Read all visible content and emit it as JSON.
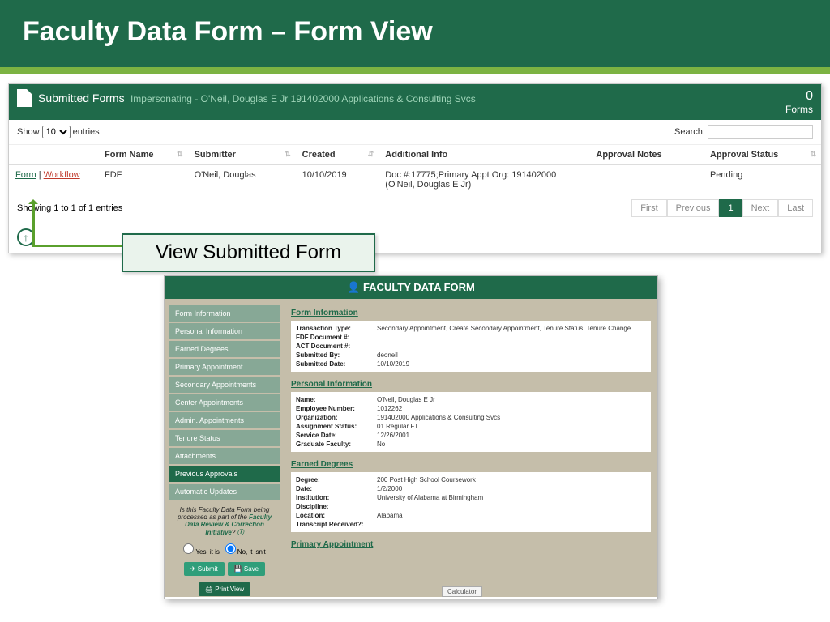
{
  "banner": {
    "title": "Faculty Data Form – Form View"
  },
  "panel1": {
    "title": "Submitted Forms",
    "impersonating": "Impersonating - O'Neil, Douglas E Jr 191402000 Applications & Consulting Svcs",
    "count": "0",
    "count_label": "Forms",
    "show_label_pre": "Show",
    "show_value": "10",
    "show_label_post": "entries",
    "search_label": "Search:",
    "columns": [
      "",
      "Form Name",
      "Submitter",
      "Created",
      "Additional Info",
      "Approval Notes",
      "Approval Status"
    ],
    "row": {
      "form_link": "Form",
      "workflow_link": "Workflow",
      "form_name": "FDF",
      "submitter": "O'Neil, Douglas",
      "created": "10/10/2019",
      "additional_info": "Doc #:17775;Primary Appt Org: 191402000 (O'Neil, Douglas E Jr)",
      "approval_notes": "",
      "approval_status": "Pending"
    },
    "showing": "Showing 1 to 1 of 1 entries",
    "pager": {
      "first": "First",
      "previous": "Previous",
      "page": "1",
      "next": "Next",
      "last": "Last"
    }
  },
  "callout": "View Submitted Form",
  "panel2": {
    "title": "FACULTY DATA FORM",
    "nav": [
      "Form Information",
      "Personal Information",
      "Earned Degrees",
      "Primary Appointment",
      "Secondary Appointments",
      "Center Appointments",
      "Admin. Appointments",
      "Tenure Status",
      "Attachments",
      "Previous Approvals",
      "Automatic Updates"
    ],
    "nav_active_index": 9,
    "note_pre": "Is this Faculty Data Form being processed as part of the ",
    "note_em": "Faculty Data Review & Correction Initiative",
    "note_q": "?",
    "radio_yes": "Yes, it is",
    "radio_no": "No, it isn't",
    "btn_submit": "Submit",
    "btn_save": "Save",
    "btn_print": "Print View",
    "calc": "Calculator",
    "sections": {
      "form_info": {
        "title": "Form Information",
        "rows": [
          [
            "Transaction Type:",
            "Secondary Appointment, Create Secondary Appointment, Tenure Status, Tenure Change"
          ],
          [
            "FDF Document #:",
            ""
          ],
          [
            "ACT Document #:",
            ""
          ],
          [
            "Submitted By:",
            "deoneil"
          ],
          [
            "Submitted Date:",
            "10/10/2019"
          ]
        ]
      },
      "personal": {
        "title": "Personal Information",
        "rows": [
          [
            "Name:",
            "O'Neil, Douglas E Jr"
          ],
          [
            "Employee Number:",
            "1012262"
          ],
          [
            "Organization:",
            "191402000 Applications & Consulting Svcs"
          ],
          [
            "Assignment Status:",
            "01 Regular FT"
          ],
          [
            "Service Date:",
            "12/26/2001"
          ],
          [
            "Graduate Faculty:",
            "No"
          ]
        ]
      },
      "degrees": {
        "title": "Earned Degrees",
        "rows": [
          [
            "Degree:",
            "200 Post High School Coursework"
          ],
          [
            "Date:",
            "1/2/2000"
          ],
          [
            "Institution:",
            "University of Alabama at Birmingham"
          ],
          [
            "Discipline:",
            ""
          ],
          [
            "Location:",
            "Alabama"
          ],
          [
            "Transcript Received?:",
            ""
          ]
        ]
      },
      "primary": {
        "title": "Primary Appointment"
      }
    }
  }
}
